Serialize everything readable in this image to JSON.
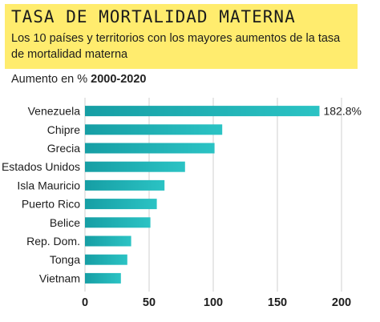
{
  "header": {
    "title": "TASA DE MORTALIDAD MATERNA",
    "subtitle": "Los 10 países y territorios con los mayores aumentos de la tasa de mortalidad materna"
  },
  "caption": {
    "prefix": "Aumento en %",
    "range": "2000-2020"
  },
  "chart_data": {
    "type": "bar",
    "orientation": "horizontal",
    "categories": [
      "Venezuela",
      "Chipre",
      "Grecia",
      "Estados Unidos",
      "Isla Mauricio",
      "Puerto Rico",
      "Belice",
      "Rep. Dom.",
      "Tonga",
      "Vietnam"
    ],
    "values": [
      182.8,
      107,
      101,
      78,
      62,
      56,
      51,
      36,
      33,
      28
    ],
    "data_labels": [
      "182.8%",
      "",
      "",
      "",
      "",
      "",
      "",
      "",
      "",
      ""
    ],
    "xlim": [
      0,
      200
    ],
    "xticks": [
      "0",
      "50",
      "100",
      "150",
      "200"
    ],
    "xtick_values": [
      0,
      50,
      100,
      150,
      200
    ],
    "grid": true,
    "bar_color": "#1bb1b5"
  }
}
